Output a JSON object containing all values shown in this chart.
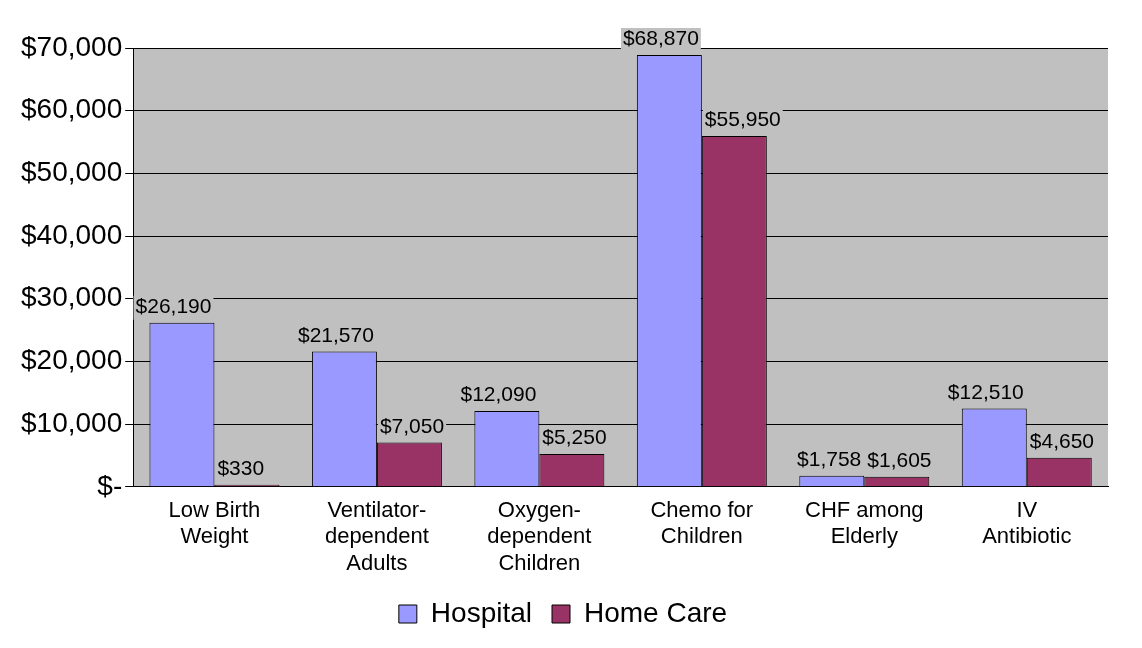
{
  "chart_data": {
    "type": "bar",
    "categories": [
      "Low Birth Weight",
      "Ventilator-dependent Adults",
      "Oxygen-dependent Children",
      "Chemo for Children",
      "CHF among Elderly",
      "IV Antibiotic"
    ],
    "series": [
      {
        "name": "Hospital",
        "color": "#9999ff",
        "values": [
          26190,
          21570,
          12090,
          68870,
          1758,
          12510
        ],
        "value_labels": [
          "$26,190",
          "$21,570",
          "$12,090",
          "$68,870",
          "$1,758",
          "$12,510"
        ]
      },
      {
        "name": "Home Care",
        "color": "#993366",
        "values": [
          330,
          7050,
          5250,
          55950,
          1605,
          4650
        ],
        "value_labels": [
          "$330",
          "$7,050",
          "$5,250",
          "$55,950",
          "$1,605",
          "$4,650"
        ]
      }
    ],
    "ylim": [
      0,
      70000
    ],
    "yticks": [
      {
        "value": 0,
        "label": "$-"
      },
      {
        "value": 10000,
        "label": "$10,000"
      },
      {
        "value": 20000,
        "label": "$20,000"
      },
      {
        "value": 30000,
        "label": "$30,000"
      },
      {
        "value": 40000,
        "label": "$40,000"
      },
      {
        "value": 50000,
        "label": "$50,000"
      },
      {
        "value": 60000,
        "label": "$60,000"
      },
      {
        "value": 70000,
        "label": "$70,000"
      }
    ],
    "grid": "y",
    "legend": "bottom"
  }
}
